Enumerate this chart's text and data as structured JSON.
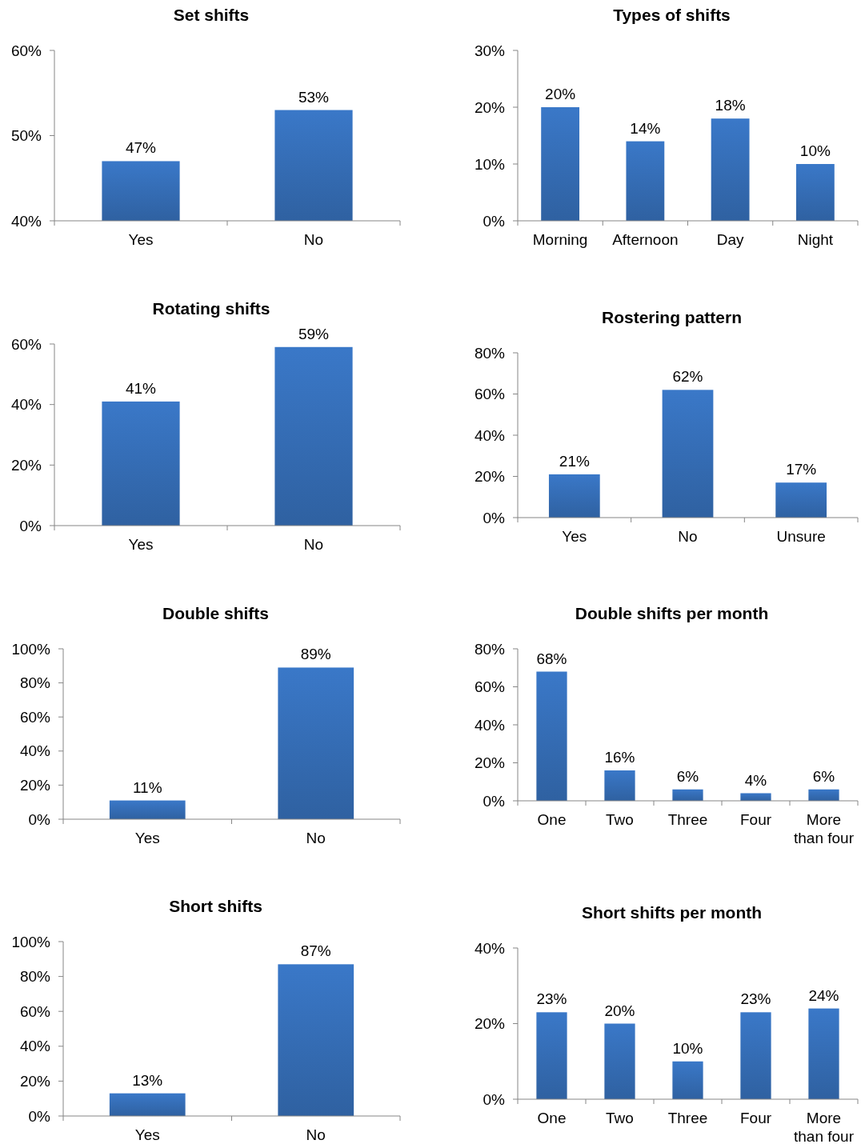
{
  "chart_data": [
    {
      "type": "bar",
      "title": "Set shifts",
      "categories": [
        "Yes",
        "No"
      ],
      "values": [
        47,
        53
      ],
      "color": "#3a78c8",
      "ylim": [
        40,
        60
      ],
      "yticks": [
        {
          "value": 40,
          "label": "40%"
        },
        {
          "value": 50,
          "label": "50%"
        },
        {
          "value": 60,
          "label": "60%"
        }
      ],
      "data_labels": true,
      "value_labels": [
        "47%",
        "53%"
      ],
      "grid": false
    },
    {
      "type": "bar",
      "title": "Types of shifts",
      "categories": [
        "Morning",
        "Afternoon",
        "Day",
        "Night"
      ],
      "values": [
        20,
        14,
        18,
        10
      ],
      "color": "#3a78c8",
      "ylim": [
        0,
        30
      ],
      "yticks": [
        {
          "value": 0,
          "label": "0%"
        },
        {
          "value": 10,
          "label": "10%"
        },
        {
          "value": 20,
          "label": "20%"
        },
        {
          "value": 30,
          "label": "30%"
        }
      ],
      "data_labels": true,
      "value_labels": [
        "20%",
        "14%",
        "18%",
        "10%"
      ],
      "grid": false
    },
    {
      "type": "bar",
      "title": "Rotating shifts",
      "categories": [
        "Yes",
        "No"
      ],
      "values": [
        41,
        59
      ],
      "color": "#3a78c8",
      "ylim": [
        0,
        60
      ],
      "yticks": [
        {
          "value": 0,
          "label": "0%"
        },
        {
          "value": 20,
          "label": "20%"
        },
        {
          "value": 40,
          "label": "40%"
        },
        {
          "value": 60,
          "label": "60%"
        }
      ],
      "data_labels": true,
      "value_labels": [
        "41%",
        "59%"
      ],
      "grid": false
    },
    {
      "type": "bar",
      "title": "Rostering pattern",
      "categories": [
        "Yes",
        "No",
        "Unsure"
      ],
      "values": [
        21,
        62,
        17
      ],
      "color": "#3a78c8",
      "ylim": [
        0,
        80
      ],
      "yticks": [
        {
          "value": 0,
          "label": "0%"
        },
        {
          "value": 20,
          "label": "20%"
        },
        {
          "value": 40,
          "label": "40%"
        },
        {
          "value": 60,
          "label": "60%"
        },
        {
          "value": 80,
          "label": "80%"
        }
      ],
      "data_labels": true,
      "value_labels": [
        "21%",
        "62%",
        "17%"
      ],
      "grid": false
    },
    {
      "type": "bar",
      "title": "Double shifts",
      "categories": [
        "Yes",
        "No"
      ],
      "values": [
        11,
        89
      ],
      "color": "#3a78c8",
      "ylim": [
        0,
        100
      ],
      "yticks": [
        {
          "value": 0,
          "label": "0%"
        },
        {
          "value": 20,
          "label": "20%"
        },
        {
          "value": 40,
          "label": "40%"
        },
        {
          "value": 60,
          "label": "60%"
        },
        {
          "value": 80,
          "label": "80%"
        },
        {
          "value": 100,
          "label": "100%"
        }
      ],
      "data_labels": true,
      "value_labels": [
        "11%",
        "89%"
      ],
      "grid": false
    },
    {
      "type": "bar",
      "title": "Double shifts per month",
      "categories": [
        "One",
        "Two",
        "Three",
        "Four",
        "More than four"
      ],
      "values": [
        68,
        16,
        6,
        4,
        6
      ],
      "color": "#3a78c8",
      "ylim": [
        0,
        80
      ],
      "yticks": [
        {
          "value": 0,
          "label": "0%"
        },
        {
          "value": 20,
          "label": "20%"
        },
        {
          "value": 40,
          "label": "40%"
        },
        {
          "value": 60,
          "label": "60%"
        },
        {
          "value": 80,
          "label": "80%"
        }
      ],
      "data_labels": true,
      "value_labels": [
        "68%",
        "16%",
        "6%",
        "4%",
        "6%"
      ],
      "grid": false
    },
    {
      "type": "bar",
      "title": "Short shifts",
      "categories": [
        "Yes",
        "No"
      ],
      "values": [
        13,
        87
      ],
      "color": "#3a78c8",
      "ylim": [
        0,
        100
      ],
      "yticks": [
        {
          "value": 0,
          "label": "0%"
        },
        {
          "value": 20,
          "label": "20%"
        },
        {
          "value": 40,
          "label": "40%"
        },
        {
          "value": 60,
          "label": "60%"
        },
        {
          "value": 80,
          "label": "80%"
        },
        {
          "value": 100,
          "label": "100%"
        }
      ],
      "data_labels": true,
      "value_labels": [
        "13%",
        "87%"
      ],
      "grid": false
    },
    {
      "type": "bar",
      "title": "Short shifts per month",
      "categories": [
        "One",
        "Two",
        "Three",
        "Four",
        "More than four"
      ],
      "values": [
        23,
        20,
        10,
        23,
        24
      ],
      "color": "#3a78c8",
      "ylim": [
        0,
        40
      ],
      "yticks": [
        {
          "value": 0,
          "label": "0%"
        },
        {
          "value": 20,
          "label": "20%"
        },
        {
          "value": 40,
          "label": "40%"
        }
      ],
      "data_labels": true,
      "value_labels": [
        "23%",
        "20%",
        "10%",
        "23%",
        "24%"
      ],
      "grid": false
    }
  ]
}
